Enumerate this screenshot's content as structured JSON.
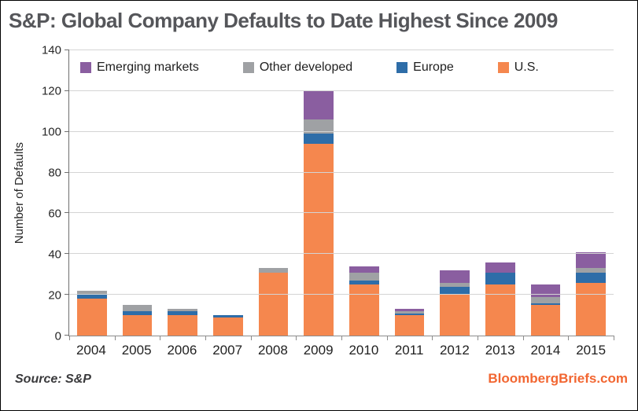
{
  "title": "S&P: Global Company Defaults to Date Highest Since 2009",
  "source_note": "Source: S&P",
  "branding": "BloombergBriefs.com",
  "colors": {
    "title_text": "#55565A",
    "us_orange": "#F5874E",
    "europe_blue": "#2E6DA8",
    "other_developed_gray": "#9FA1A4",
    "emerging_markets_purple": "#8A5EA0",
    "branding_orange": "#F26631",
    "gridline_gray": "#D4D4D4"
  },
  "chart_data": {
    "type": "bar",
    "stacked": true,
    "title": "S&P: Global Company Defaults to Date Highest Since 2009",
    "categories": [
      "2004",
      "2005",
      "2006",
      "2007",
      "2008",
      "2009",
      "2010",
      "2011",
      "2012",
      "2013",
      "2014",
      "2015"
    ],
    "series": [
      {
        "name": "U.S.",
        "color": "#F5874E",
        "values": [
          18,
          10,
          10,
          9,
          31,
          94,
          25,
          10,
          20,
          25,
          15,
          26
        ]
      },
      {
        "name": "Europe",
        "color": "#2E6DA8",
        "values": [
          2,
          2,
          2,
          1,
          0,
          5,
          2,
          1,
          4,
          6,
          1,
          5
        ]
      },
      {
        "name": "Other developed",
        "color": "#9FA1A4",
        "values": [
          2,
          3,
          1,
          0,
          2,
          7,
          4,
          1,
          2,
          0,
          3,
          2
        ]
      },
      {
        "name": "Emerging markets",
        "color": "#8A5EA0",
        "values": [
          0,
          0,
          0,
          0,
          0,
          14,
          3,
          1,
          6,
          5,
          6,
          8
        ]
      }
    ],
    "stack_order_bottom_to_top": [
      "U.S.",
      "Europe",
      "Other developed",
      "Emerging markets"
    ],
    "totals": [
      22,
      15,
      13,
      10,
      33,
      120,
      34,
      13,
      32,
      36,
      25,
      41
    ],
    "legend_order": [
      "Emerging markets",
      "Other developed",
      "Europe",
      "U.S."
    ],
    "legend_position": "top-inside",
    "xlabel": "",
    "ylabel": "Number of Defaults",
    "ylim": [
      0,
      140
    ],
    "ytick_step": 20,
    "yticks": [
      0,
      20,
      40,
      60,
      80,
      100,
      120,
      140
    ],
    "grid": true
  }
}
